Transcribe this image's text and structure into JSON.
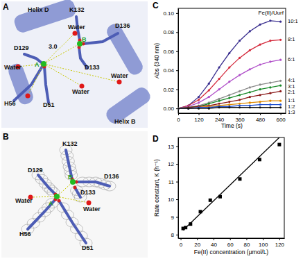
{
  "chart_data": [
    {
      "type": "line",
      "title": "C",
      "x": [
        0,
        60,
        120,
        180,
        240,
        300,
        360,
        420,
        480,
        540,
        600
      ],
      "xlim": [
        0,
        630
      ],
      "xticks": [
        0,
        120,
        240,
        360,
        480,
        600
      ],
      "ylim": [
        -0.005,
        0.105
      ],
      "yticks": [
        {
          "value": 0,
          "label": "0.00"
        },
        {
          "value": 0.02,
          "label": "0.02"
        },
        {
          "value": 0.04,
          "label": "0.04"
        },
        {
          "value": 0.06,
          "label": "0.06"
        },
        {
          "value": 0.08,
          "label": "0.08"
        },
        {
          "value": 0.1,
          "label": "0.10"
        }
      ],
      "xlabel": "Time (s)",
      "ylabel": "Abs (340 nm)",
      "annotations": [
        "Fe(II)/Uurf"
      ],
      "marker": "circle",
      "series": [
        {
          "name": "10:1",
          "color": "#3a2f8f",
          "values": [
            0,
            0.003,
            0.012,
            0.026,
            0.043,
            0.058,
            0.071,
            0.081,
            0.088,
            0.092,
            0.091
          ]
        },
        {
          "name": "8:1",
          "color": "#d42a3c",
          "values": [
            0,
            0.003,
            0.009,
            0.019,
            0.031,
            0.043,
            0.053,
            0.061,
            0.067,
            0.071,
            0.072
          ]
        },
        {
          "name": "6:1",
          "color": "#b04fc9",
          "values": [
            0,
            0.002,
            0.006,
            0.012,
            0.02,
            0.028,
            0.035,
            0.041,
            0.046,
            0.049,
            0.051
          ]
        },
        {
          "name": "4:1",
          "color": "#8a8a8a",
          "values": [
            0,
            0.001,
            0.003,
            0.006,
            0.01,
            0.014,
            0.018,
            0.022,
            0.025,
            0.027,
            0.029
          ]
        },
        {
          "name": "3:1",
          "color": "#1a8a2a",
          "values": [
            0,
            0.001,
            0.002,
            0.005,
            0.008,
            0.011,
            0.014,
            0.017,
            0.02,
            0.022,
            0.024
          ]
        },
        {
          "name": "2:1",
          "color": "#8b1a1a",
          "values": [
            0,
            0.001,
            0.002,
            0.003,
            0.005,
            0.007,
            0.009,
            0.012,
            0.014,
            0.016,
            0.018
          ]
        },
        {
          "name": "1:1",
          "color": "#e08a00",
          "values": [
            0,
            0,
            0.001,
            0.002,
            0.003,
            0.004,
            0.005,
            0.006,
            0.007,
            0.008,
            0.008
          ]
        },
        {
          "name": "1:2",
          "color": "#2050d0",
          "values": [
            0,
            0,
            0.001,
            0.001,
            0.002,
            0.002,
            0.003,
            0.003,
            0.004,
            0.004,
            0.004
          ]
        },
        {
          "name": "1:3",
          "color": "#111111",
          "values": [
            0,
            0,
            0,
            0,
            0.001,
            0.001,
            0.001,
            0.001,
            0.001,
            0.001,
            0.001
          ]
        }
      ]
    },
    {
      "type": "scatter",
      "title": "D",
      "xlim": [
        -3,
        126
      ],
      "xticks": [
        0,
        20,
        40,
        60,
        80,
        100,
        120
      ],
      "ylim": [
        7.8,
        13.5
      ],
      "yticks": [
        8,
        9,
        10,
        11,
        12,
        13
      ],
      "xlabel": "Fe(II) concentration (μmol/L)",
      "ylabel": "Rate constant, K (h⁻¹)",
      "series": [
        {
          "type": "scatter",
          "marker": "square",
          "color": "#000000",
          "x": [
            3,
            6,
            12,
            24,
            36,
            48,
            72,
            96,
            120
          ],
          "values": [
            8.35,
            8.4,
            8.6,
            9.3,
            9.95,
            10.15,
            11.15,
            12.25,
            13.1
          ]
        },
        {
          "type": "line",
          "color": "#000000",
          "x": [
            3,
            120
          ],
          "values": [
            8.25,
            13.5
          ]
        }
      ]
    }
  ],
  "structure_panels": [
    {
      "label": "A",
      "texts": [
        "Helix D",
        "K132",
        "Water",
        "B",
        "D136",
        "D129",
        "3.0",
        "Water",
        "A",
        "D133",
        "Water",
        "Water",
        "H56",
        "D51",
        "Helix B"
      ]
    },
    {
      "label": "B",
      "texts": [
        "K132",
        "D129",
        "D136",
        "B",
        "D133",
        "Water",
        "A",
        "Water",
        "H56",
        "D51"
      ]
    }
  ]
}
